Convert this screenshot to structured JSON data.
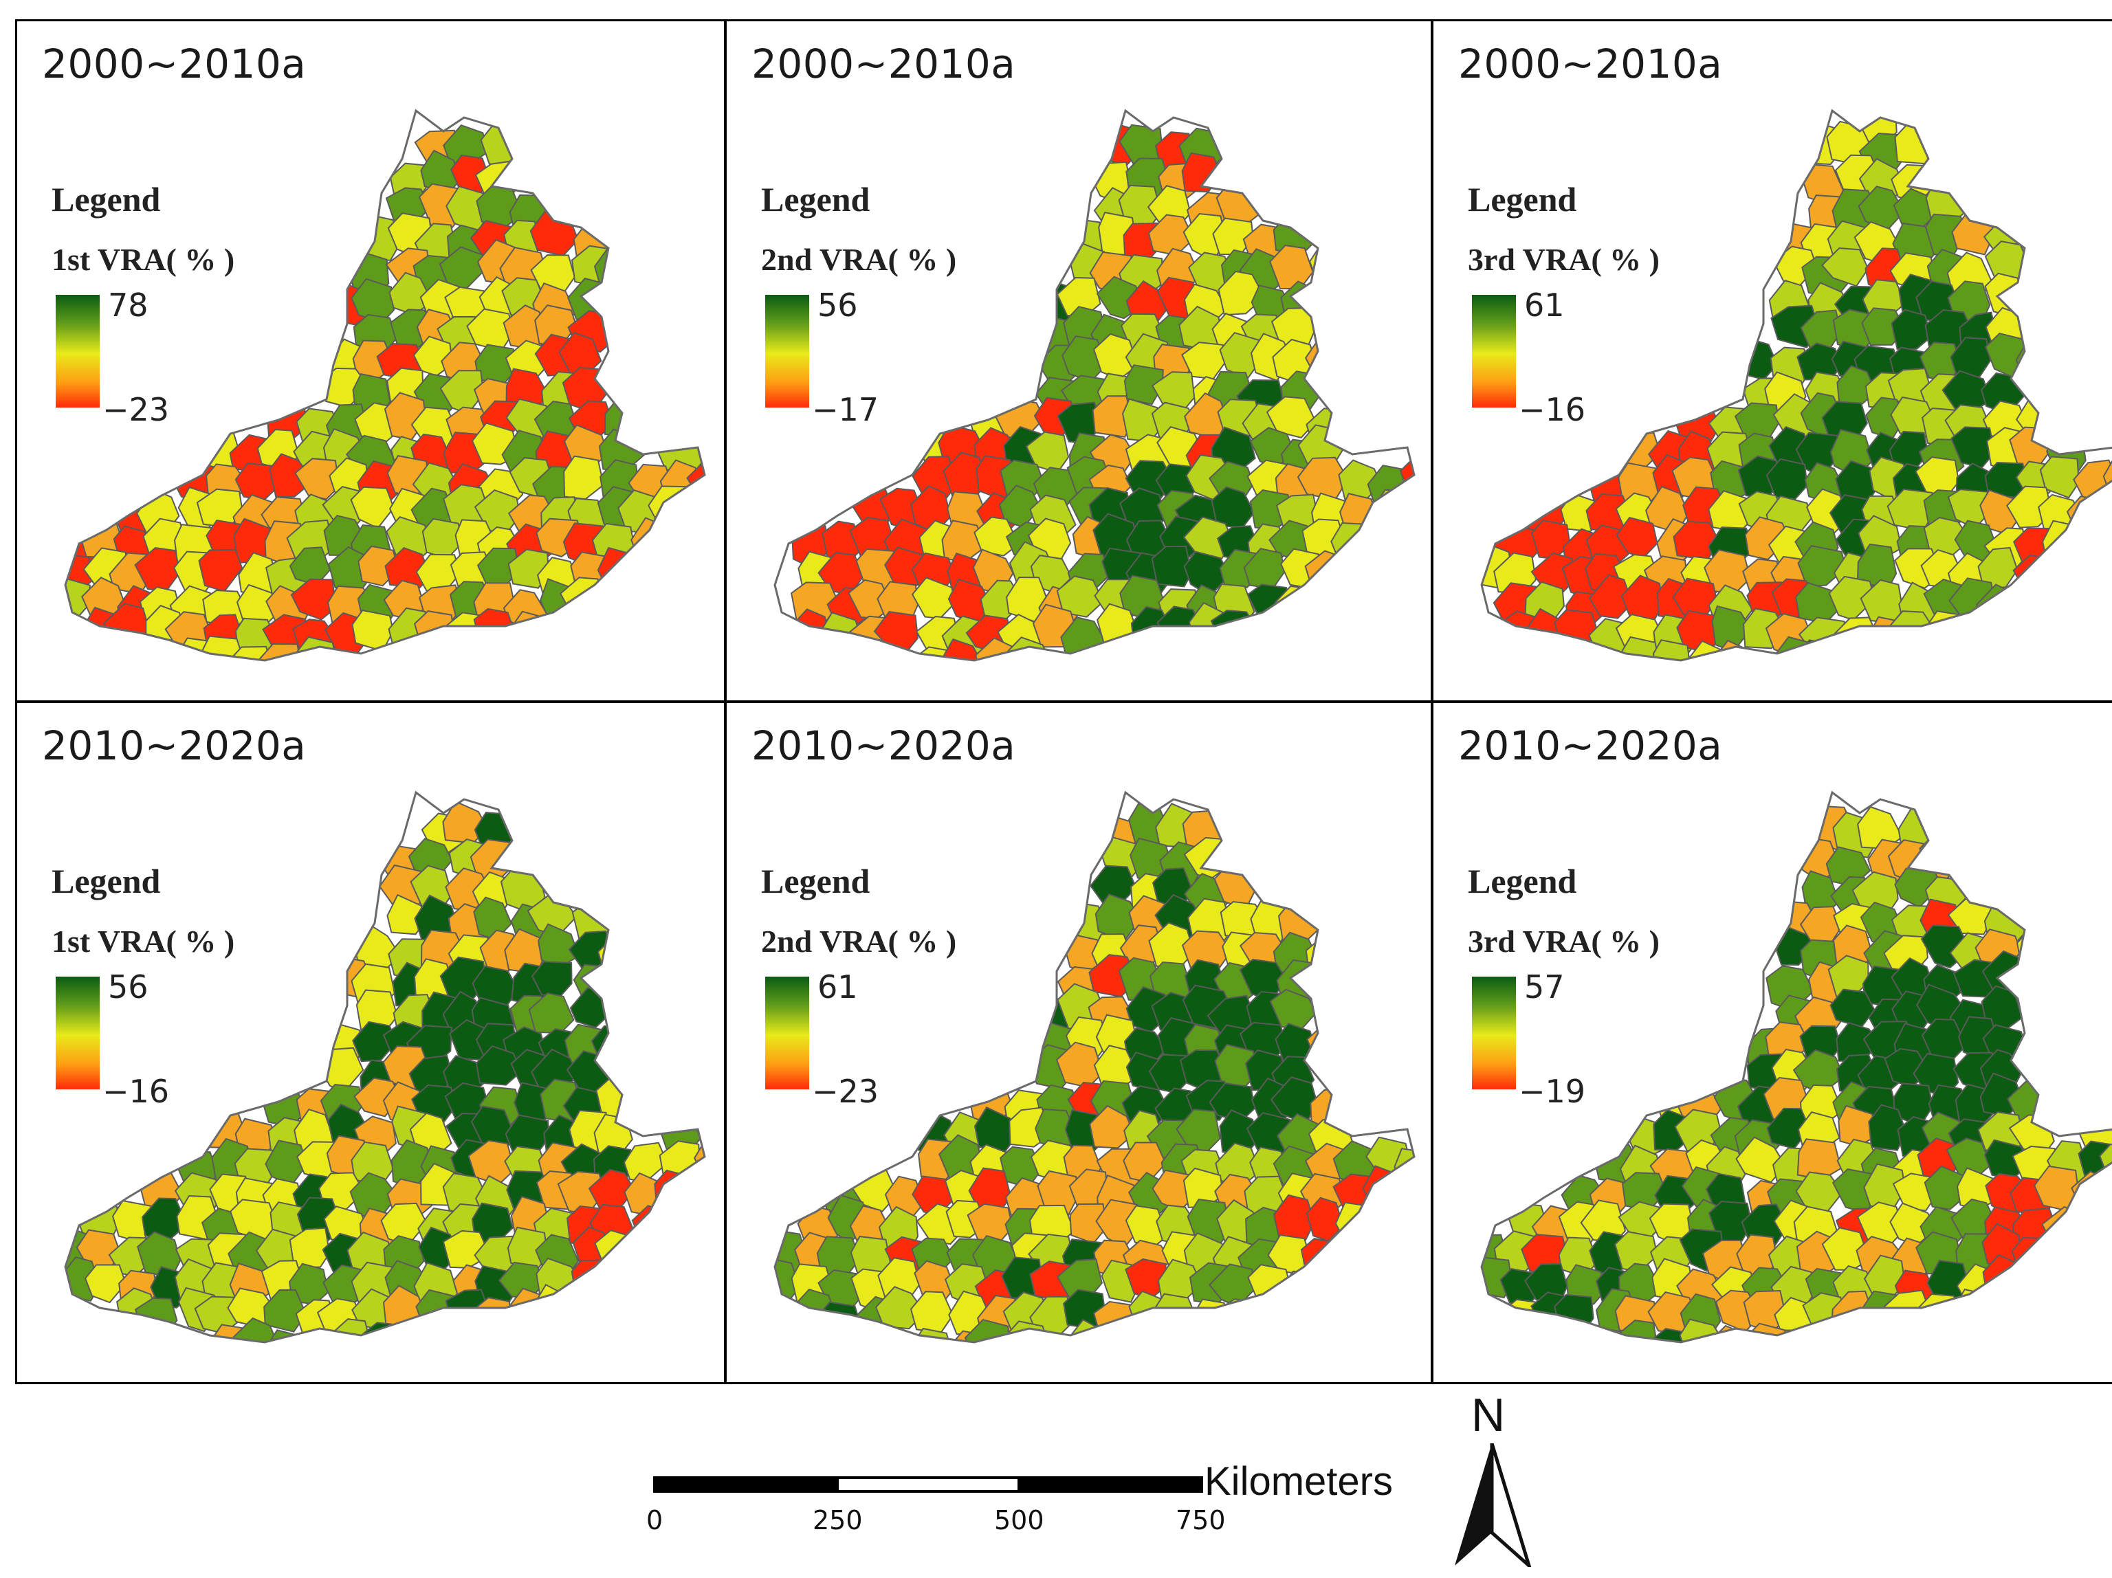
{
  "panels": [
    {
      "row": 0,
      "col": 0,
      "period": "2000~2010a",
      "legend_title": "Legend",
      "legend_label": "1st VRA( % )",
      "max": "78",
      "min": "−23",
      "green_bias": 0.38,
      "seed": 11,
      "dark_zone": "scatter"
    },
    {
      "row": 0,
      "col": 1,
      "period": "2000~2010a",
      "legend_title": "Legend",
      "legend_label": "2nd VRA( % )",
      "max": "56",
      "min": "−17",
      "green_bias": 0.5,
      "seed": 23,
      "dark_zone": "south"
    },
    {
      "row": 0,
      "col": 2,
      "period": "2000~2010a",
      "legend_title": "Legend",
      "legend_label": "3rd VRA( % )",
      "max": "61",
      "min": "−16",
      "green_bias": 0.55,
      "seed": 37,
      "dark_zone": "center"
    },
    {
      "row": 1,
      "col": 0,
      "period": "2010~2020a",
      "legend_title": "Legend",
      "legend_label": "1st VRA( % )",
      "max": "56",
      "min": "−16",
      "green_bias": 0.62,
      "seed": 41,
      "dark_zone": "northeast"
    },
    {
      "row": 1,
      "col": 1,
      "period": "2010~2020a",
      "legend_title": "Legend",
      "legend_label": "2nd VRA( % )",
      "max": "61",
      "min": "−23",
      "green_bias": 0.58,
      "seed": 53,
      "dark_zone": "northeast"
    },
    {
      "row": 1,
      "col": 2,
      "period": "2010~2020a",
      "legend_title": "Legend",
      "legend_label": "3rd VRA( % )",
      "max": "57",
      "min": "−19",
      "green_bias": 0.6,
      "seed": 67,
      "dark_zone": "northeast"
    }
  ],
  "scale_bar": {
    "ticks": [
      "0",
      "250",
      "500",
      "750"
    ],
    "unit": "Kilometers"
  },
  "north_arrow": {
    "label": "N"
  },
  "colors": {
    "dark_green": "#0b5b12",
    "green": "#5f9b1a",
    "yellow_green": "#b7d31c",
    "yellow": "#e8ea1a",
    "orange": "#f5a623",
    "red": "#ff2a0a",
    "boundary": "#5a5a5a"
  }
}
